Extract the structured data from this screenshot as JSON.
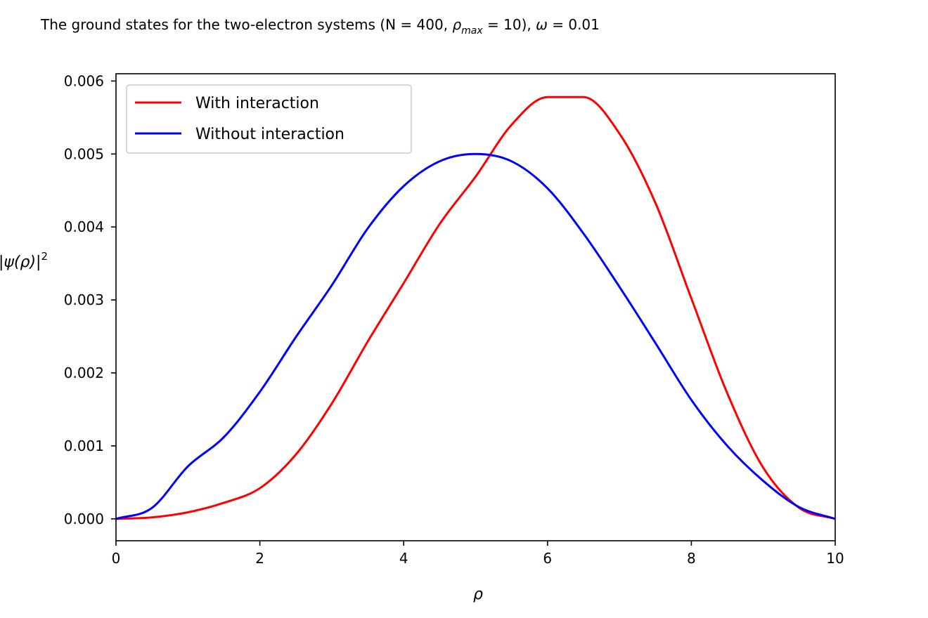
{
  "chart_data": {
    "type": "line",
    "title": {
      "prefix": "The ground states for the two-electron systems (N = 400, ",
      "rho_symbol": "ρ",
      "rho_subscript": "max",
      "middle": " = 10), ",
      "omega_symbol": "ω",
      "suffix": " = 0.01"
    },
    "xlabel": "ρ",
    "ylabel": {
      "base": "|ψ(ρ)|",
      "superscript": "2"
    },
    "xlim": [
      0,
      10
    ],
    "ylim": [
      -0.0003,
      0.0061
    ],
    "x_ticks": [
      0,
      2,
      4,
      6,
      8,
      10
    ],
    "x_tick_labels": [
      "0",
      "2",
      "4",
      "6",
      "8",
      "10"
    ],
    "y_ticks": [
      0.0,
      0.001,
      0.002,
      0.003,
      0.004,
      0.005,
      0.006
    ],
    "y_tick_labels": [
      "0.000",
      "0.001",
      "0.002",
      "0.003",
      "0.004",
      "0.005",
      "0.006"
    ],
    "grid": false,
    "legend_position": "top-left",
    "x": [
      0,
      0.5,
      1,
      1.5,
      2,
      2.5,
      3,
      3.5,
      4,
      4.5,
      5,
      5.5,
      6,
      6.5,
      7,
      7.5,
      8,
      8.5,
      9,
      9.5,
      10
    ],
    "series": [
      {
        "name": "With interaction",
        "color": "#ff0000",
        "values": [
          0.0,
          2e-05,
          9e-05,
          0.00022,
          0.00042,
          0.00088,
          0.00158,
          0.00243,
          0.00323,
          0.00404,
          0.00469,
          0.0054,
          0.00578,
          0.00578,
          0.00528,
          0.00433,
          0.00302,
          0.00172,
          0.0007,
          0.00015,
          0.0
        ]
      },
      {
        "name": "Without interaction",
        "color": "#0000ff",
        "values": [
          0.0,
          0.00015,
          0.00072,
          0.00112,
          0.00174,
          0.00249,
          0.0032,
          0.00398,
          0.00456,
          0.0049,
          0.005,
          0.0049,
          0.00453,
          0.00391,
          0.00318,
          0.00241,
          0.00163,
          0.001,
          0.00052,
          0.00016,
          0.0
        ]
      }
    ]
  }
}
